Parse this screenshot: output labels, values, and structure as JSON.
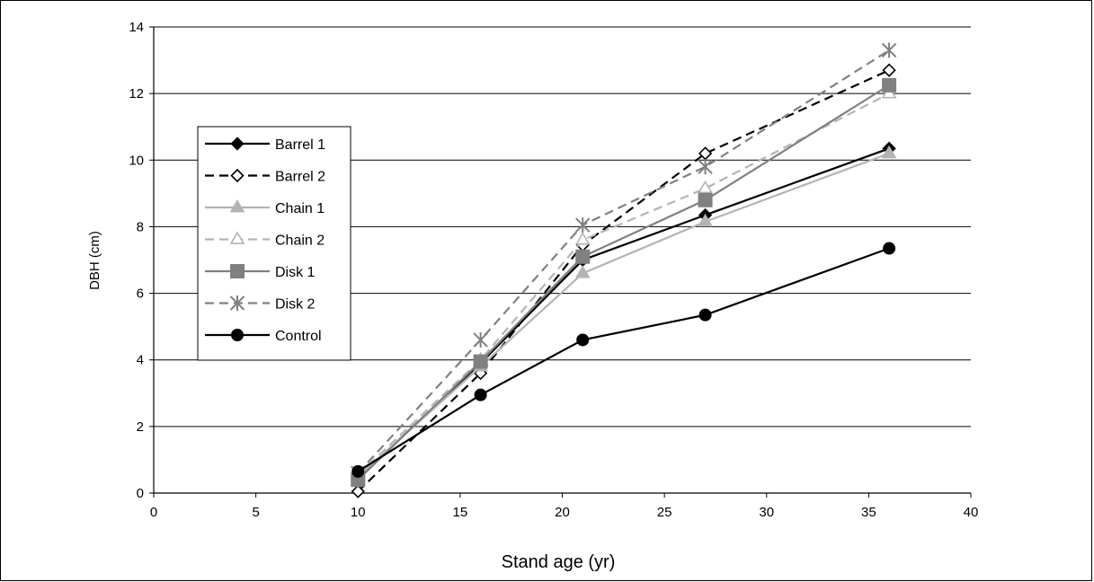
{
  "chart_data": {
    "type": "line",
    "title": "",
    "xlabel": "Stand age (yr)",
    "ylabel": "DBH (cm)",
    "xlim": [
      0,
      40
    ],
    "ylim": [
      0,
      14
    ],
    "xticks": [
      0,
      5,
      10,
      15,
      20,
      25,
      30,
      35,
      40
    ],
    "yticks": [
      0,
      2,
      4,
      6,
      8,
      10,
      12,
      14
    ],
    "grid": "horizontal",
    "legend_position": "left",
    "x": [
      10,
      16,
      21,
      27,
      36
    ],
    "series": [
      {
        "name": "Barrel 1",
        "values": [
          0.45,
          3.9,
          7.0,
          8.35,
          10.35
        ],
        "color": "#000000",
        "dash": "solid",
        "marker": "diamond-filled"
      },
      {
        "name": "Barrel 2",
        "values": [
          0.05,
          3.6,
          7.45,
          10.2,
          12.7
        ],
        "color": "#000000",
        "dash": "dashed",
        "marker": "diamond-open"
      },
      {
        "name": "Chain 1",
        "values": [
          0.5,
          3.8,
          6.6,
          8.15,
          10.2
        ],
        "color": "#b4b4b4",
        "dash": "solid",
        "marker": "triangle-filled"
      },
      {
        "name": "Chain 2",
        "values": [
          0.55,
          4.0,
          7.6,
          9.15,
          12.0
        ],
        "color": "#b4b4b4",
        "dash": "dashed",
        "marker": "triangle-open"
      },
      {
        "name": "Disk 1",
        "values": [
          0.4,
          3.95,
          7.1,
          8.8,
          12.25
        ],
        "color": "#808080",
        "dash": "solid",
        "marker": "square-filled"
      },
      {
        "name": "Disk 2",
        "values": [
          0.6,
          4.6,
          8.05,
          9.8,
          13.3
        ],
        "color": "#808080",
        "dash": "dashed",
        "marker": "asterisk"
      },
      {
        "name": "Control",
        "values": [
          0.65,
          2.95,
          4.6,
          5.35,
          7.35
        ],
        "color": "#000000",
        "dash": "solid",
        "marker": "circle-filled"
      }
    ]
  }
}
